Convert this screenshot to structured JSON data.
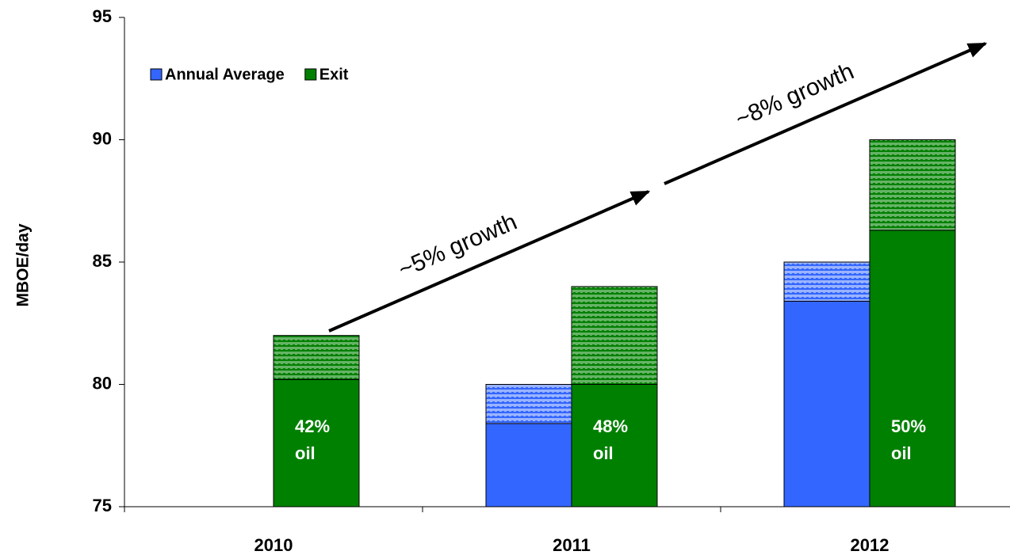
{
  "chart_data": {
    "type": "bar",
    "ylabel": "MBOE/day",
    "categories": [
      "2010",
      "2011",
      "2012"
    ],
    "ylim": [
      75,
      95
    ],
    "yticks": [
      75,
      80,
      85,
      90,
      95
    ],
    "legend": "top-left",
    "series": [
      {
        "name": "Annual Average",
        "color": "#3366ff",
        "hatch_color": "#99b3ff",
        "values": [
          null,
          78.4,
          83.4
        ],
        "hatched_values": [
          null,
          1.6,
          1.6
        ]
      },
      {
        "name": "Exit",
        "color": "#008000",
        "hatch_color": "#66b366",
        "values": [
          80.2,
          80.0,
          86.3
        ],
        "hatched_values": [
          1.8,
          4.0,
          3.7
        ],
        "bar_labels": [
          [
            "42%",
            "oil"
          ],
          [
            "48%",
            "oil"
          ],
          [
            "50%",
            "oil"
          ]
        ]
      }
    ],
    "annotations": [
      "~5% growth",
      "~8% growth"
    ]
  }
}
